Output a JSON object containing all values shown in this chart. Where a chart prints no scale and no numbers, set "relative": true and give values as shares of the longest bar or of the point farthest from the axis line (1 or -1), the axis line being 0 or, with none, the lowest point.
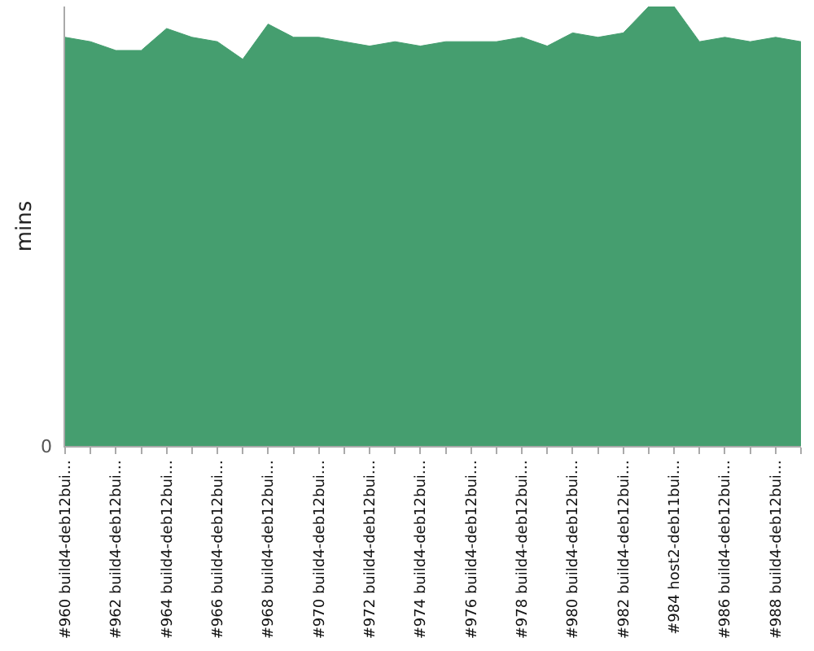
{
  "chart_data": {
    "type": "area",
    "ylabel": "mins",
    "relative": true,
    "annotations": [
      "0"
    ],
    "categories": [
      "#960 build4-deb12bui…",
      null,
      "#962 build4-deb12bui…",
      null,
      "#964 build4-deb12bui…",
      null,
      "#966 build4-deb12bui…",
      null,
      "#968 build4-deb12bui…",
      null,
      "#970 build4-deb12bui…",
      null,
      "#972 build4-deb12bui…",
      null,
      "#974 build4-deb12bui…",
      null,
      "#976 build4-deb12bui…",
      null,
      "#978 build4-deb12bui…",
      null,
      "#980 build4-deb12bui…",
      null,
      "#982 build4-deb12bui…",
      null,
      "#984 host2-deb11bui…",
      null,
      "#986 build4-deb12bui…",
      null,
      "#988 build4-deb12bui…",
      null
    ],
    "series": [
      {
        "color": "#459e6f",
        "values": [
          0.93,
          0.92,
          0.9,
          0.9,
          0.95,
          0.93,
          0.92,
          0.88,
          0.96,
          0.93,
          0.93,
          0.92,
          0.91,
          0.92,
          0.91,
          0.92,
          0.92,
          0.92,
          0.93,
          0.91,
          0.94,
          0.93,
          0.94,
          1,
          1,
          0.92,
          0.93,
          0.92,
          0.93,
          0.92
        ]
      }
    ]
  }
}
